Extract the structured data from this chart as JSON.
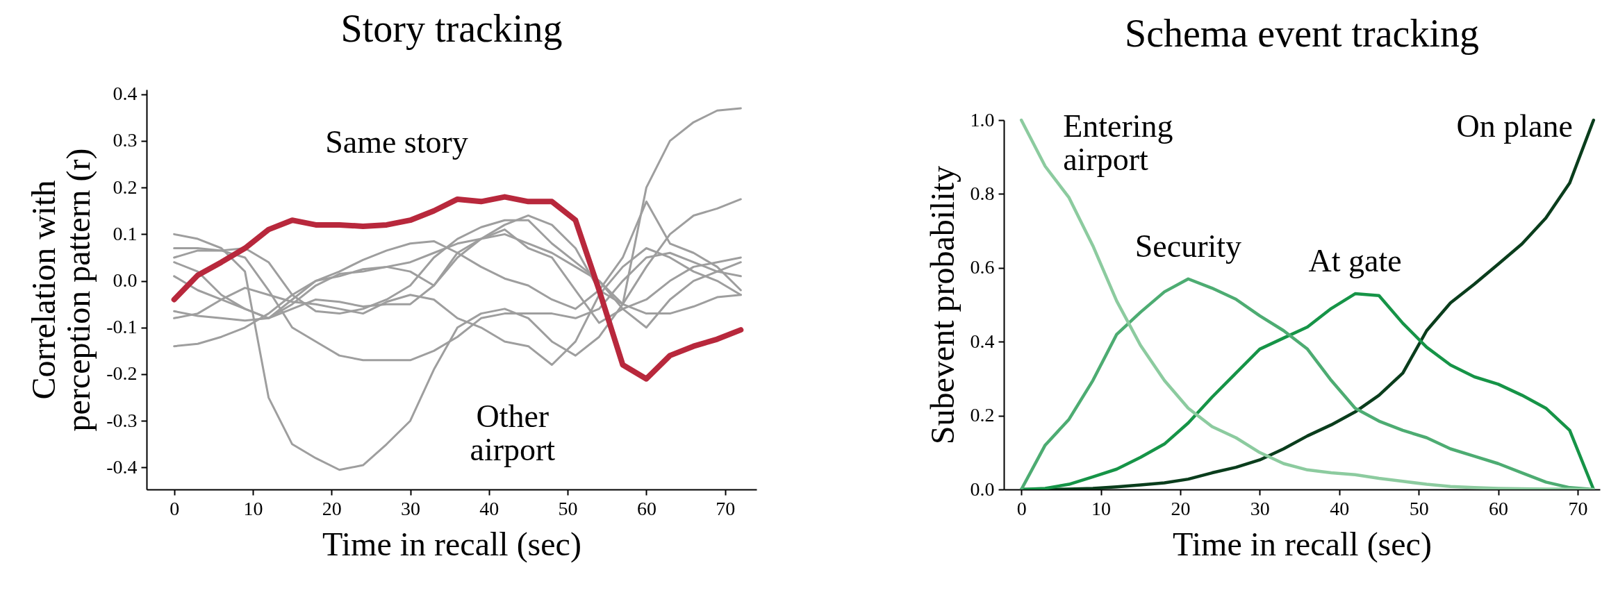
{
  "chart_data": [
    {
      "type": "line",
      "title": "Story tracking",
      "xlabel": "Time in recall (sec)",
      "ylabel": "Correlation with\nperception pattern (r)",
      "x": [
        0,
        3,
        6,
        9,
        12,
        15,
        18,
        21,
        24,
        27,
        30,
        33,
        36,
        39,
        42,
        45,
        48,
        51,
        54,
        57,
        60,
        63,
        66,
        69,
        72
      ],
      "series": [
        {
          "color": "#b8283c",
          "values": [
            -0.04,
            0.012,
            0.04,
            0.07,
            0.11,
            0.13,
            0.12,
            0.12,
            0.117,
            0.12,
            0.13,
            0.15,
            0.175,
            0.17,
            0.18,
            0.17,
            0.17,
            0.13,
            -0.02,
            -0.18,
            -0.21,
            -0.16,
            -0.14,
            -0.125,
            -0.105
          ]
        },
        {
          "color": "#9e9e9e",
          "values": [
            0.1,
            0.09,
            0.07,
            0.02,
            -0.25,
            -0.35,
            -0.38,
            -0.405,
            -0.395,
            -0.35,
            -0.3,
            -0.19,
            -0.1,
            -0.07,
            -0.06,
            -0.08,
            -0.13,
            -0.16,
            -0.12,
            -0.05,
            0.2,
            0.3,
            0.34,
            0.365,
            0.37
          ]
        },
        {
          "color": "#9e9e9e",
          "values": [
            0.07,
            0.07,
            0.065,
            0.05,
            -0.02,
            -0.1,
            -0.13,
            -0.16,
            -0.17,
            -0.17,
            -0.17,
            -0.15,
            -0.12,
            -0.08,
            -0.07,
            -0.07,
            -0.07,
            -0.08,
            -0.06,
            0.0,
            0.05,
            0.06,
            0.04,
            0.02,
            0.01
          ]
        },
        {
          "color": "#9e9e9e",
          "values": [
            -0.14,
            -0.135,
            -0.12,
            -0.1,
            -0.07,
            -0.03,
            0.0,
            0.01,
            0.025,
            0.03,
            0.04,
            0.06,
            0.08,
            0.09,
            0.1,
            0.08,
            0.06,
            0.03,
            0.0,
            -0.05,
            -0.07,
            -0.07,
            -0.055,
            -0.035,
            -0.03
          ]
        },
        {
          "color": "#9e9e9e",
          "values": [
            0.05,
            0.065,
            0.065,
            0.07,
            0.04,
            -0.03,
            -0.065,
            -0.07,
            -0.06,
            -0.04,
            -0.01,
            0.05,
            0.09,
            0.115,
            0.13,
            0.13,
            0.08,
            0.04,
            0.0,
            -0.06,
            -0.1,
            -0.04,
            0.0,
            0.02,
            0.04
          ]
        },
        {
          "color": "#9e9e9e",
          "values": [
            0.04,
            0.02,
            -0.03,
            -0.06,
            -0.08,
            -0.04,
            0.0,
            0.02,
            0.045,
            0.065,
            0.08,
            0.085,
            0.06,
            0.03,
            0.005,
            -0.01,
            -0.04,
            -0.06,
            -0.02,
            0.05,
            0.17,
            0.08,
            0.06,
            0.03,
            -0.02
          ]
        },
        {
          "color": "#9e9e9e",
          "values": [
            0.01,
            -0.02,
            -0.04,
            -0.06,
            -0.08,
            -0.05,
            -0.01,
            0.015,
            0.02,
            0.03,
            0.02,
            -0.01,
            0.06,
            0.09,
            0.12,
            0.14,
            0.12,
            0.07,
            -0.02,
            -0.05,
            0.03,
            0.1,
            0.14,
            0.155,
            0.175
          ]
        },
        {
          "color": "#9e9e9e",
          "values": [
            -0.065,
            -0.075,
            -0.08,
            -0.085,
            -0.08,
            -0.06,
            -0.04,
            -0.045,
            -0.055,
            -0.05,
            -0.05,
            -0.01,
            0.05,
            0.09,
            0.11,
            0.07,
            0.05,
            -0.02,
            -0.09,
            -0.06,
            -0.04,
            0.0,
            0.03,
            0.04,
            0.05
          ]
        },
        {
          "color": "#9e9e9e",
          "values": [
            -0.08,
            -0.07,
            -0.04,
            -0.015,
            -0.03,
            -0.045,
            -0.05,
            -0.06,
            -0.07,
            -0.045,
            -0.03,
            -0.04,
            -0.08,
            -0.1,
            -0.13,
            -0.14,
            -0.18,
            -0.13,
            -0.03,
            0.03,
            0.07,
            0.05,
            0.02,
            0.0,
            -0.03
          ]
        }
      ],
      "annotations": [
        "Same story",
        "Other airport"
      ],
      "xlim": [
        -3.5,
        74
      ],
      "xticks": [
        0,
        10,
        20,
        30,
        40,
        50,
        60,
        70
      ],
      "ylim": [
        -0.447,
        0.41
      ],
      "yticks": [
        {
          "value": -0.4,
          "label": "-0.4"
        },
        {
          "value": -0.3,
          "label": "-0.3"
        },
        {
          "value": -0.2,
          "label": "-0.2"
        },
        {
          "value": -0.1,
          "label": "-0.1"
        },
        {
          "value": 0,
          "label": "0.0"
        },
        {
          "value": 0.1,
          "label": "0.1"
        },
        {
          "value": 0.2,
          "label": "0.2"
        },
        {
          "value": 0.3,
          "label": "0.3"
        },
        {
          "value": 0.4,
          "label": "0.4"
        }
      ],
      "grid": false
    },
    {
      "type": "line",
      "title": "Schema event tracking",
      "xlabel": "Time in recall (sec)",
      "ylabel": "Subevent probability",
      "x": [
        0,
        3,
        6,
        9,
        12,
        15,
        18,
        21,
        24,
        27,
        30,
        33,
        36,
        39,
        42,
        45,
        48,
        51,
        54,
        57,
        60,
        63,
        66,
        69,
        72
      ],
      "series": [
        {
          "name": "Entering airport",
          "color": "#8ccb9f",
          "values": [
            1.0,
            0.875,
            0.79,
            0.66,
            0.51,
            0.39,
            0.295,
            0.22,
            0.17,
            0.14,
            0.1,
            0.07,
            0.053,
            0.045,
            0.04,
            0.03,
            0.022,
            0.014,
            0.008,
            0.005,
            0.003,
            0.002,
            0.001,
            0.001,
            0.0
          ]
        },
        {
          "name": "Security",
          "color": "#4dac72",
          "values": [
            0.0,
            0.12,
            0.19,
            0.295,
            0.42,
            0.48,
            0.535,
            0.57,
            0.545,
            0.515,
            0.47,
            0.43,
            0.38,
            0.295,
            0.22,
            0.185,
            0.16,
            0.14,
            0.11,
            0.09,
            0.07,
            0.045,
            0.02,
            0.005,
            0.0
          ]
        },
        {
          "name": "At gate",
          "color": "#169447",
          "values": [
            0.0,
            0.003,
            0.014,
            0.034,
            0.055,
            0.087,
            0.123,
            0.18,
            0.25,
            0.315,
            0.38,
            0.41,
            0.44,
            0.49,
            0.53,
            0.525,
            0.45,
            0.385,
            0.337,
            0.305,
            0.285,
            0.255,
            0.22,
            0.16,
            0.0
          ]
        },
        {
          "name": "On plane",
          "color": "#0a3d1c",
          "values": [
            0.0,
            0.0,
            0.001,
            0.003,
            0.007,
            0.012,
            0.018,
            0.028,
            0.045,
            0.06,
            0.08,
            0.11,
            0.145,
            0.175,
            0.21,
            0.255,
            0.315,
            0.43,
            0.505,
            0.556,
            0.61,
            0.665,
            0.735,
            0.83,
            1.0
          ]
        }
      ],
      "xlim": [
        -2.2,
        72.8
      ],
      "xticks": [
        0,
        10,
        20,
        30,
        40,
        50,
        60,
        70
      ],
      "ylim": [
        0,
        1.0
      ],
      "yticks": [
        {
          "value": 0,
          "label": "0.0"
        },
        {
          "value": 0.2,
          "label": "0.2"
        },
        {
          "value": 0.4,
          "label": "0.4"
        },
        {
          "value": 0.6,
          "label": "0.6"
        },
        {
          "value": 0.8,
          "label": "0.8"
        },
        {
          "value": 1.0,
          "label": "1.0"
        }
      ],
      "grid": false
    }
  ]
}
